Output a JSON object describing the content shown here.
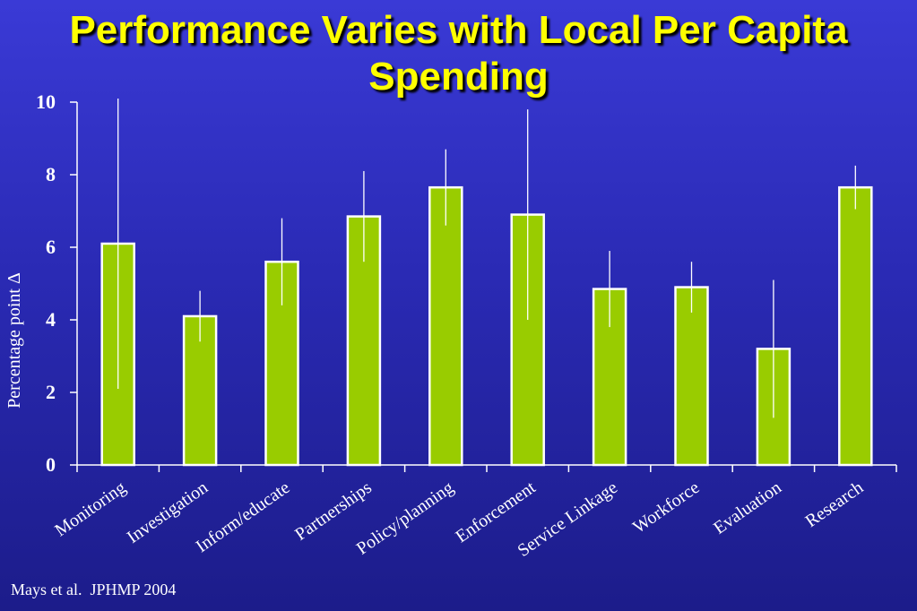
{
  "slide": {
    "title": "Performance Varies with Local Per Capita Spending",
    "citation": "Mays et al.  JPHMP 2004"
  },
  "colors": {
    "background_top": "#3a3ad6",
    "background_bottom": "#1c1c8a",
    "title": "#ffff00",
    "bar_fill": "#99cc00",
    "bar_stroke": "#ffffff",
    "axis": "#ffffff",
    "error_bar": "#ffffff"
  },
  "chart_data": {
    "type": "bar",
    "title": "Performance Varies with Local Per Capita Spending",
    "xlabel": "",
    "ylabel": "Percentage point Δ",
    "ylim": [
      0,
      10
    ],
    "yticks": [
      0,
      2,
      4,
      6,
      8,
      10
    ],
    "grid": false,
    "categories": [
      "Monitoring",
      "Investigation",
      "Inform/educate",
      "Partnerships",
      "Policy/planning",
      "Enforcement",
      "Service Linkage",
      "Workforce",
      "Evaluation",
      "Research"
    ],
    "values": [
      6.1,
      4.1,
      5.6,
      6.85,
      7.65,
      6.9,
      4.85,
      4.9,
      3.2,
      7.65
    ],
    "error_low": [
      2.1,
      3.4,
      4.4,
      5.6,
      6.6,
      4.0,
      3.8,
      4.2,
      1.3,
      7.05
    ],
    "error_high": [
      10.1,
      4.8,
      6.8,
      8.1,
      8.7,
      9.8,
      5.9,
      5.6,
      5.1,
      8.25
    ]
  }
}
